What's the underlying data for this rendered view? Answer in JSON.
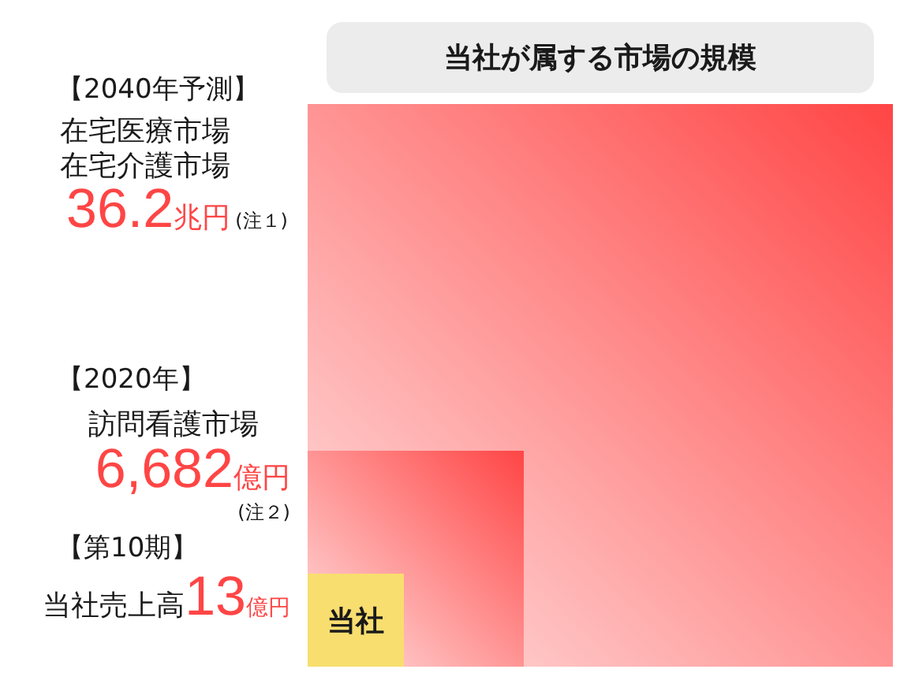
{
  "chart_data": {
    "type": "other",
    "title": "当社が属する市場の規模",
    "categories": [
      "在宅医療市場在宅介護市場",
      "訪問看護市場",
      "当社売上高"
    ],
    "values": [
      36.2,
      6682,
      13
    ],
    "value_labels": [
      "36.2兆円",
      "6,682億円",
      "13億円"
    ],
    "colors": [
      "#ff4545",
      "#ff4545",
      "#f8de6f"
    ],
    "annotations": [
      "【2040年予測】",
      "【2020年】",
      "【第10期】",
      "(注１)",
      "(注２)",
      "当社"
    ]
  }
}
